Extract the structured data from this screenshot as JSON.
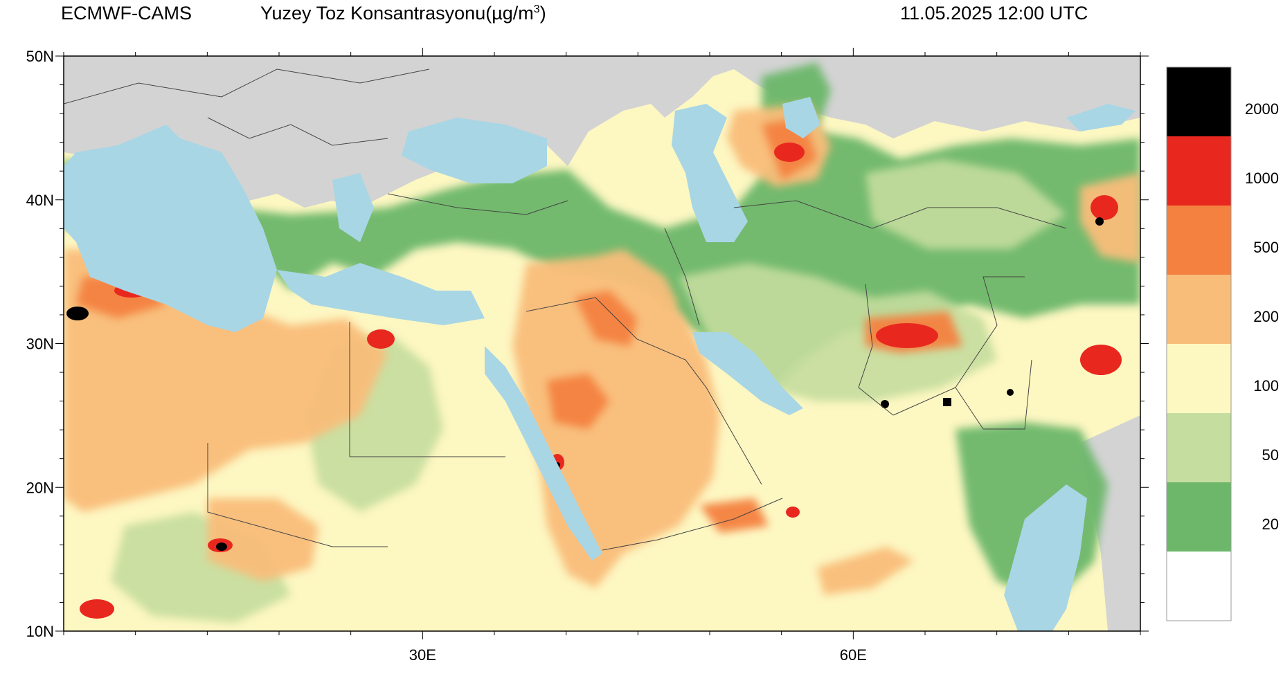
{
  "header": {
    "source": "ECMWF-CAMS",
    "title_main": "Yuzey Toz Konsantrasyonu(",
    "title_unit": "µg/m",
    "title_sup": "3",
    "title_end": ")",
    "datetime": "11.05.2025 12:00 UTC"
  },
  "axes": {
    "lat_labels": [
      "50N",
      "40N",
      "30N",
      "20N",
      "10N"
    ],
    "lat_values": [
      50,
      40,
      30,
      20,
      10
    ],
    "lon_labels": [
      "30E",
      "60E"
    ],
    "lon_values": [
      30,
      60
    ],
    "lon_range": [
      5,
      80
    ],
    "lat_range": [
      10,
      50
    ]
  },
  "legend": {
    "levels": [
      "2000",
      "1000",
      "500",
      "200",
      "100",
      "50",
      "20"
    ],
    "colors": [
      "#000000",
      "#e8281e",
      "#f4813f",
      "#f9bd7a",
      "#fdf7c2",
      "#c5dd9e",
      "#6cb76a",
      "#ffffff"
    ]
  },
  "colors": {
    "land_masked": "#d3d3d3",
    "water": "#a8d6e5",
    "border": "#555555"
  }
}
